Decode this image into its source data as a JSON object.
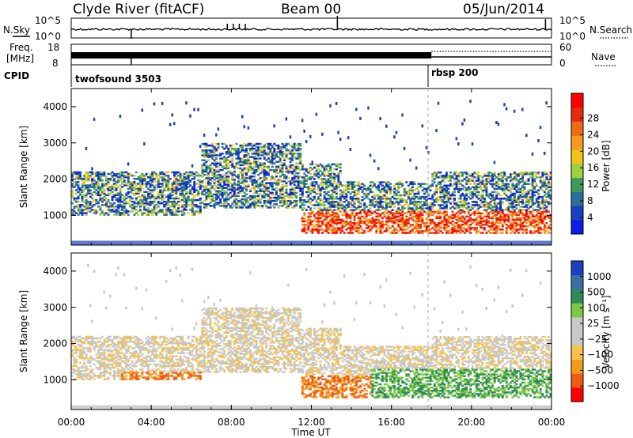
{
  "header": {
    "title": "Clyde River (fitACF)",
    "beam": "Beam 00",
    "date": "05/Jun/2014"
  },
  "noise_panel": {
    "left_label": "N.Sky",
    "left_ticks": [
      "10^5",
      "10^0"
    ],
    "right_ticks": [
      "10^5",
      "10^0"
    ],
    "right_label": "N.Search"
  },
  "freq_panel": {
    "left_label_top": "Freq.",
    "left_label_bottom": "[MHz]",
    "left_ticks": [
      "18",
      "8"
    ],
    "right_ticks": [
      "60",
      "0"
    ],
    "right_label": "Nave"
  },
  "cpid": {
    "label": "CPID",
    "segments": [
      {
        "name": "twofsound 3503",
        "start_h": 0
      },
      {
        "name": "rbsp 200",
        "start_h": 18
      }
    ]
  },
  "x_axis": {
    "ticks": [
      "00:00",
      "04:00",
      "08:00",
      "12:00",
      "16:00",
      "20:00",
      "00:00"
    ],
    "label": "Time UT"
  },
  "colors": {
    "power": [
      "#0b1de8",
      "#1a3fbf",
      "#2a6e9a",
      "#3d9a5a",
      "#9bd03f",
      "#f2c21b",
      "#f59a1a",
      "#ef6a14",
      "#e62a0f",
      "#ff0000"
    ],
    "velocity": [
      "#ff0000",
      "#ef5a10",
      "#f39a1c",
      "#f7c24a",
      "#c8c8c8",
      "#c8c8c8",
      "#7ac943",
      "#2e8b57",
      "#3a6ea5",
      "#1a3fbf"
    ]
  },
  "chart_data": [
    {
      "type": "heatmap",
      "title": "",
      "ylabel": "Slant Range [km]",
      "y_ticks": [
        "1000",
        "2000",
        "3000",
        "4000"
      ],
      "ylim": [
        180,
        4500
      ],
      "xlim_hours": [
        0,
        24
      ],
      "colorbar_label": "Power [dB]",
      "colorbar_ticks": [
        "4",
        "8",
        "12",
        "16",
        "20",
        "24",
        "28"
      ],
      "echo_bands_km": [
        {
          "t0": 0.0,
          "t1": 6.5,
          "r0": 1000,
          "r1": 2200
        },
        {
          "t0": 6.5,
          "t1": 11.5,
          "r0": 1200,
          "r1": 3000
        },
        {
          "t0": 11.5,
          "t1": 13.5,
          "r0": 500,
          "r1": 2400
        },
        {
          "t0": 13.5,
          "t1": 18.0,
          "r0": 500,
          "r1": 1900
        },
        {
          "t0": 18.0,
          "t1": 24.0,
          "r0": 500,
          "r1": 2200
        }
      ]
    },
    {
      "type": "heatmap",
      "title": "",
      "ylabel": "Slant Range [km]",
      "y_ticks": [
        "1000",
        "2000",
        "3000",
        "4000"
      ],
      "ylim": [
        180,
        4500
      ],
      "xlim_hours": [
        0,
        24
      ],
      "colorbar_label": "Velocity [m s⁻¹]",
      "colorbar_ticks": [
        "1000",
        "500",
        "100",
        "25",
        "−25",
        "−100",
        "−500",
        "−1000"
      ]
    }
  ]
}
